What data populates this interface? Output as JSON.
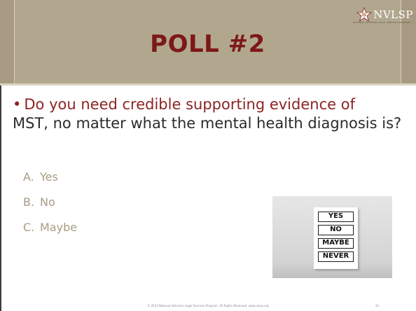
{
  "slide": {
    "title": "POLL #2",
    "logo": {
      "text": "NVLSP",
      "subtitle": "NATIONAL VETERANS LEGAL SERVICES PROGRAM"
    },
    "bullet": {
      "prefix": "•",
      "text_part1": "Do you need credible supporting evidence of",
      "text_part2": "MST, no matter what the mental health diagnosis is?"
    },
    "options": [
      {
        "letter": "A.",
        "label": "Yes"
      },
      {
        "letter": "B.",
        "label": "No"
      },
      {
        "letter": "C.",
        "label": "Maybe"
      }
    ],
    "photo_board": [
      "YES",
      "NO",
      "MAYBE",
      "NEVER"
    ],
    "footer": "© 2023 National Veterans Legal Services Program. All Rights Reserved. www.nvlsp.org",
    "page_number": "24"
  },
  "colors": {
    "header_band": "#a89a82",
    "title_box": "#b1a78f",
    "title_text": "#7d1818",
    "bullet_accent": "#8b2424",
    "option_text": "#a89b85"
  }
}
